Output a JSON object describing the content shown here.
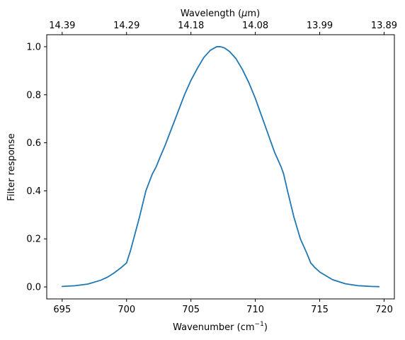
{
  "chart_data": {
    "type": "line",
    "xlabel": "Wavenumber (cm",
    "xlabel_superscript": "−1",
    "xlabel_suffix": ")",
    "ylabel": "Filter response",
    "top_xlabel": "Wavelength (",
    "top_xlabel_mu": "μ",
    "top_xlabel_suffix": "m)",
    "xlim": [
      693.8,
      720.8
    ],
    "ylim": [
      -0.05,
      1.05
    ],
    "xticks": [
      695,
      700,
      705,
      710,
      715,
      720
    ],
    "xtick_labels": [
      "695",
      "700",
      "705",
      "710",
      "715",
      "720"
    ],
    "yticks": [
      0.0,
      0.2,
      0.4,
      0.6,
      0.8,
      1.0
    ],
    "ytick_labels": [
      "0.0",
      "0.2",
      "0.4",
      "0.6",
      "0.8",
      "1.0"
    ],
    "top_xticks": [
      695,
      700,
      705,
      710,
      715,
      720
    ],
    "top_xtick_labels": [
      "14.39",
      "14.29",
      "14.18",
      "14.08",
      "13.99",
      "13.89"
    ],
    "grid": false,
    "series": [
      {
        "color": "#1f77b4",
        "x": [
          695,
          696,
          697,
          698,
          698.5,
          699,
          699.5,
          700,
          700.3,
          700.6,
          701,
          701.5,
          702,
          702.3,
          702.6,
          703,
          703.5,
          704,
          704.5,
          705,
          705.5,
          706,
          706.5,
          707,
          707.3,
          707.6,
          708,
          708.5,
          709,
          709.5,
          710,
          710.5,
          711,
          711.5,
          712,
          712.2,
          712.5,
          713,
          713.5,
          714,
          714.3,
          714.6,
          715,
          716,
          717,
          718,
          719,
          719.6
        ],
        "y": [
          0.002,
          0.005,
          0.012,
          0.028,
          0.04,
          0.057,
          0.077,
          0.1,
          0.15,
          0.21,
          0.29,
          0.4,
          0.47,
          0.5,
          0.54,
          0.59,
          0.66,
          0.73,
          0.8,
          0.86,
          0.91,
          0.955,
          0.985,
          1.0,
          1.0,
          0.995,
          0.98,
          0.95,
          0.905,
          0.85,
          0.785,
          0.71,
          0.635,
          0.56,
          0.5,
          0.47,
          0.4,
          0.29,
          0.2,
          0.14,
          0.1,
          0.082,
          0.062,
          0.03,
          0.013,
          0.005,
          0.002,
          0.001
        ]
      }
    ]
  }
}
